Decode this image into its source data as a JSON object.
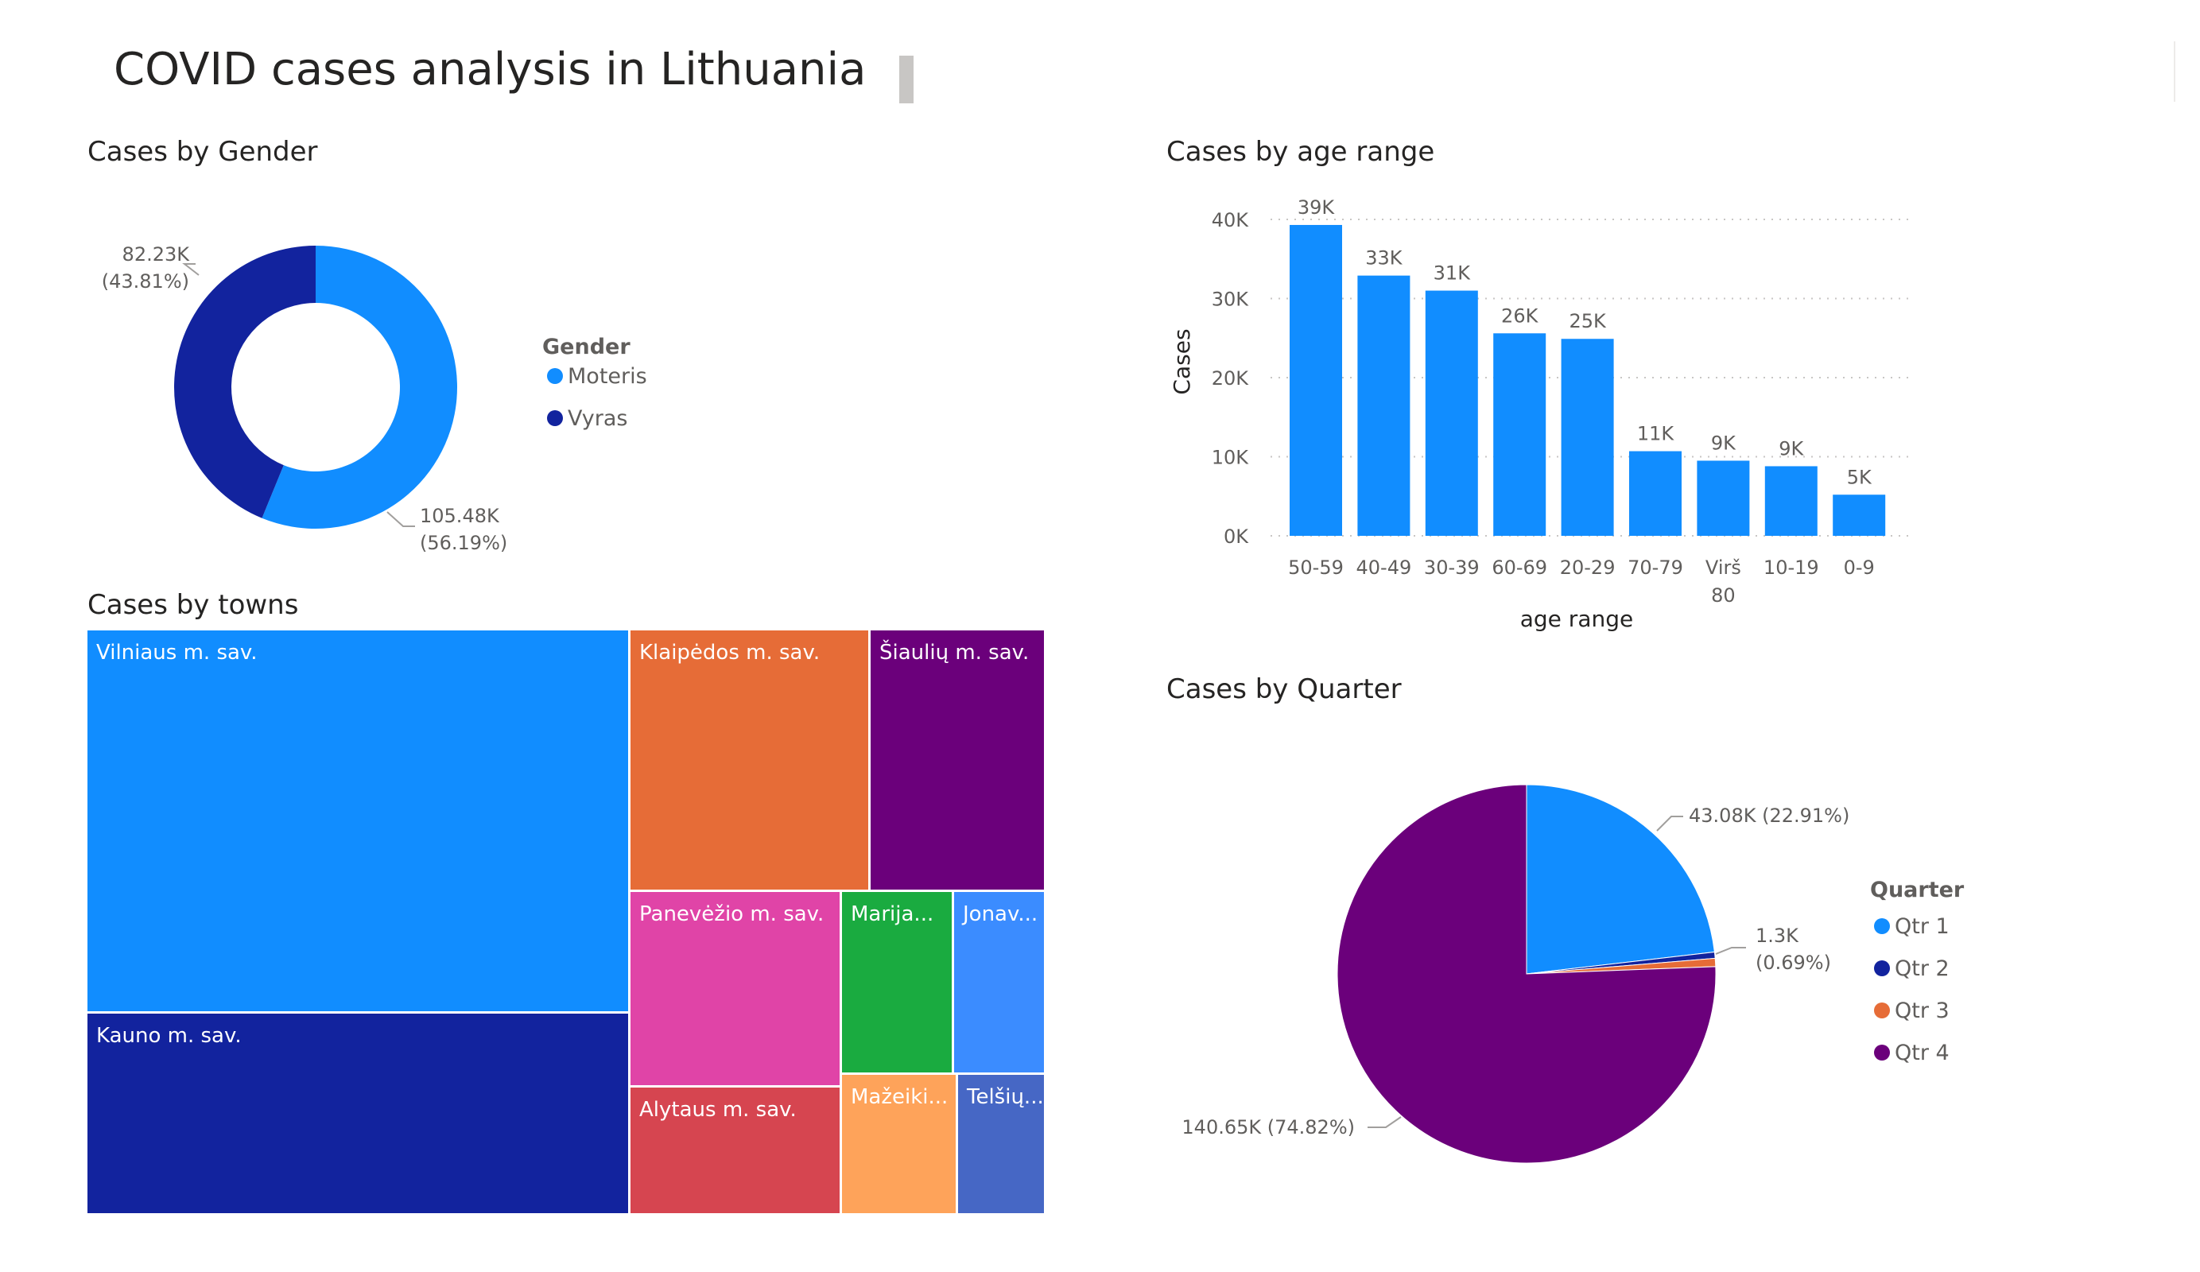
{
  "page": {
    "title": "COVID cases analysis in Lithuania"
  },
  "chart_data": [
    {
      "id": "gender",
      "type": "pie",
      "variant": "donut",
      "title": "Cases by Gender",
      "legend_title": "Gender",
      "legend_position": "right",
      "slices": [
        {
          "name": "Moteris",
          "value": 105.48,
          "label": "105.48K",
          "pct_label": "(56.19%)",
          "color": "#118dff"
        },
        {
          "name": "Vyras",
          "value": 82.23,
          "label": "82.23K",
          "pct_label": "(43.81%)",
          "color": "#12239e"
        }
      ]
    },
    {
      "id": "age",
      "type": "bar",
      "title": "Cases by age range",
      "xlabel": "age range",
      "ylabel": "Cases",
      "ylim": [
        0,
        40000
      ],
      "yticks": [
        0,
        10000,
        20000,
        30000,
        40000
      ],
      "ytick_labels": [
        "0K",
        "10K",
        "20K",
        "30K",
        "40K"
      ],
      "grid": true,
      "color": "#118dff",
      "categories": [
        "50-59",
        "40-49",
        "30-39",
        "60-69",
        "20-29",
        "70-79",
        "Virš 80",
        "10-19",
        "0-9"
      ],
      "category_lines": [
        [
          "50-59"
        ],
        [
          "40-49"
        ],
        [
          "30-39"
        ],
        [
          "60-69"
        ],
        [
          "20-29"
        ],
        [
          "70-79"
        ],
        [
          "Virš",
          "80"
        ],
        [
          "10-19"
        ],
        [
          "0-9"
        ]
      ],
      "values": [
        39300,
        32900,
        31000,
        25600,
        24900,
        10700,
        9500,
        8800,
        5200
      ],
      "data_labels": [
        "39K",
        "33K",
        "31K",
        "26K",
        "25K",
        "11K",
        "9K",
        "9K",
        "5K"
      ]
    },
    {
      "id": "towns",
      "type": "treemap",
      "title": "Cases by towns",
      "tiles": [
        {
          "label": "Vilniaus m. sav.",
          "color": "#118dff"
        },
        {
          "label": "Kauno m. sav.",
          "color": "#12239e"
        },
        {
          "label": "Klaipėdos m. sav.",
          "color": "#e66c37"
        },
        {
          "label": "Šiaulių m. sav.",
          "color": "#6b007b"
        },
        {
          "label": "Panevėžio m. sav.",
          "color": "#e044a7"
        },
        {
          "label": "Alytaus m. sav.",
          "color": "#d64550"
        },
        {
          "label": "Marija...",
          "color": "#1aab40"
        },
        {
          "label": "Jonav...",
          "color": "#3b8cff"
        },
        {
          "label": "Mažeiki...",
          "color": "#fea35a"
        },
        {
          "label": "Telšių...",
          "color": "#4667c5"
        }
      ]
    },
    {
      "id": "quarter",
      "type": "pie",
      "title": "Cases by Quarter",
      "legend_title": "Quarter",
      "legend_position": "right",
      "slices": [
        {
          "name": "Qtr 1",
          "value": 43.08,
          "pct": 22.91,
          "label": "43.08K (22.91%)",
          "color": "#118dff"
        },
        {
          "name": "Qtr 2",
          "value": 1.0,
          "pct": 0.53,
          "label": "",
          "color": "#12239e"
        },
        {
          "name": "Qtr 3",
          "value": 1.3,
          "pct": 0.69,
          "label": "1.3K",
          "pct_label": "(0.69%)",
          "color": "#e66c37"
        },
        {
          "name": "Qtr 4",
          "value": 140.65,
          "pct": 74.82,
          "label": "140.65K (74.82%)",
          "color": "#6b007b"
        }
      ]
    }
  ]
}
